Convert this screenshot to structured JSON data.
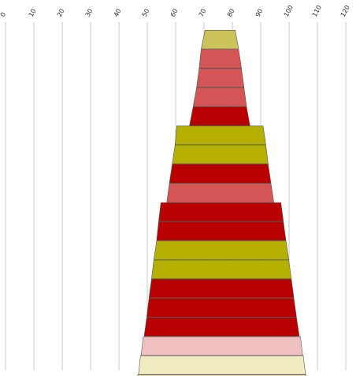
{
  "chart_data": {
    "type": "bar",
    "subtype": "funnel",
    "title": "",
    "xlabel": "",
    "ylabel": "",
    "grid": true,
    "legend": "none",
    "xlim": [
      0,
      120
    ],
    "x_ticks": [
      "0",
      "10",
      "20",
      "30",
      "40",
      "50",
      "60",
      "70",
      "80",
      "90",
      "100",
      "110",
      "120"
    ],
    "colors": {
      "olive": "#b5b000",
      "red": "#b80000",
      "coral": "#d45555",
      "khaki": "#ccc45a",
      "pink": "#f0c0c0",
      "cream": "#f0ecc0"
    },
    "segments": [
      {
        "left_top": 70.4,
        "right_top": 81.0,
        "left_bottom": 69.0,
        "right_bottom": 82.2,
        "color": "khaki"
      },
      {
        "left_top": 69.0,
        "right_top": 82.2,
        "left_bottom": 68.3,
        "right_bottom": 83.2,
        "color": "coral"
      },
      {
        "left_top": 68.3,
        "right_top": 83.2,
        "left_bottom": 67.4,
        "right_bottom": 84.1,
        "color": "coral"
      },
      {
        "left_top": 67.4,
        "right_top": 84.1,
        "left_bottom": 66.2,
        "right_bottom": 85.0,
        "color": "coral"
      },
      {
        "left_top": 66.2,
        "right_top": 85.0,
        "left_bottom": 64.9,
        "right_bottom": 86.2,
        "color": "red"
      },
      {
        "left_top": 60.4,
        "right_top": 90.8,
        "left_bottom": 59.8,
        "right_bottom": 91.8,
        "color": "olive"
      },
      {
        "left_top": 59.8,
        "right_top": 91.8,
        "left_bottom": 58.8,
        "right_bottom": 92.6,
        "color": "olive"
      },
      {
        "left_top": 58.8,
        "right_top": 92.6,
        "left_bottom": 57.8,
        "right_bottom": 93.6,
        "color": "red"
      },
      {
        "left_top": 57.8,
        "right_top": 93.6,
        "left_bottom": 56.9,
        "right_bottom": 94.6,
        "color": "coral"
      },
      {
        "left_top": 54.8,
        "right_top": 97.1,
        "left_bottom": 54.0,
        "right_bottom": 98.0,
        "color": "red"
      },
      {
        "left_top": 54.0,
        "right_top": 98.0,
        "left_bottom": 53.3,
        "right_bottom": 98.9,
        "color": "red"
      },
      {
        "left_top": 53.3,
        "right_top": 98.9,
        "left_bottom": 52.3,
        "right_bottom": 99.9,
        "color": "olive"
      },
      {
        "left_top": 52.3,
        "right_top": 99.9,
        "left_bottom": 51.5,
        "right_bottom": 100.8,
        "color": "olive"
      },
      {
        "left_top": 51.5,
        "right_top": 100.8,
        "left_bottom": 50.6,
        "right_bottom": 101.7,
        "color": "red"
      },
      {
        "left_top": 50.6,
        "right_top": 101.7,
        "left_bottom": 49.8,
        "right_bottom": 102.6,
        "color": "red"
      },
      {
        "left_top": 49.8,
        "right_top": 102.6,
        "left_bottom": 48.9,
        "right_bottom": 103.6,
        "color": "red"
      },
      {
        "left_top": 48.6,
        "right_top": 104.0,
        "left_bottom": 47.8,
        "right_bottom": 104.8,
        "color": "pink"
      },
      {
        "left_top": 47.6,
        "right_top": 105.0,
        "left_bottom": 46.9,
        "right_bottom": 105.8,
        "color": "cream"
      },
      {
        "left_top": 46.6,
        "right_top": 106.0,
        "left_bottom": 46.0,
        "right_bottom": 106.8,
        "color": "cream"
      }
    ]
  }
}
